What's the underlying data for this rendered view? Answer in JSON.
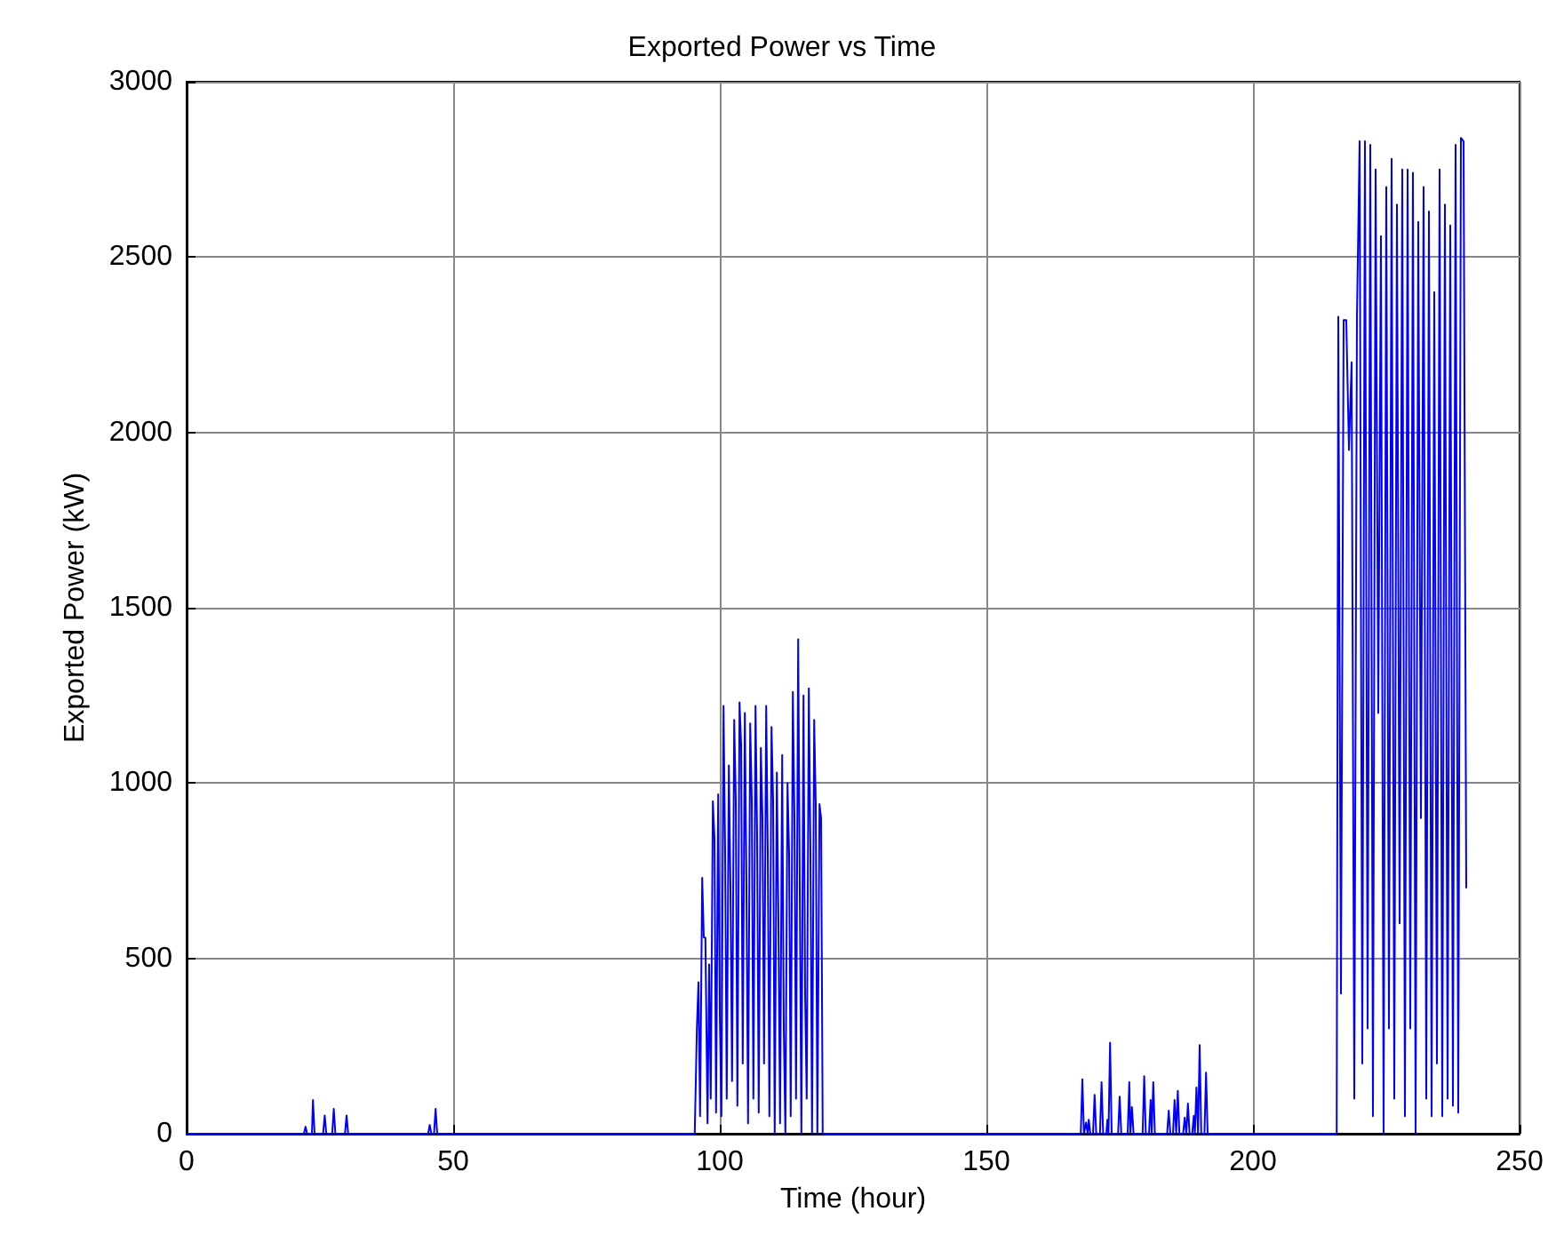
{
  "chart_data": {
    "type": "line",
    "title": "Exported Power vs Time",
    "xlabel": "Time (hour)",
    "ylabel": "Exported Power (kW)",
    "xlim": [
      0,
      250
    ],
    "xticks": [
      0,
      50,
      100,
      150,
      200,
      250
    ],
    "ylim": [
      0,
      3000
    ],
    "yticks": [
      0,
      500,
      1000,
      1500,
      2000,
      2500,
      3000
    ],
    "grid": true,
    "marker": "none",
    "line_style": "solid",
    "series": [
      {
        "color": "#0000ff",
        "x": [
          0,
          22,
          22.3,
          22.6,
          23.5,
          23.7,
          24,
          25.6,
          25.9,
          26.2,
          27.3,
          27.6,
          27.9,
          29.7,
          30,
          30.3,
          45.3,
          45.6,
          45.9,
          46.4,
          46.7,
          47,
          95,
          95.3,
          95.7,
          96,
          96.3,
          96.7,
          97,
          97.3,
          97.7,
          98,
          98.3,
          98.7,
          99,
          99.3,
          99.7,
          100,
          100.3,
          100.7,
          101,
          101.3,
          101.7,
          102,
          102.3,
          102.7,
          103,
          103.3,
          103.7,
          104,
          104.3,
          104.7,
          105,
          105.3,
          105.7,
          106,
          106.3,
          106.7,
          107,
          107.3,
          107.7,
          108,
          108.3,
          108.7,
          109,
          109.3,
          109.7,
          110,
          110.3,
          110.7,
          111,
          111.3,
          111.7,
          112,
          112.3,
          112.7,
          113,
          113.3,
          113.7,
          114,
          114.3,
          114.7,
          115,
          115.3,
          115.7,
          116,
          116.3,
          116.7,
          117,
          117.3,
          117.7,
          118,
          118.3,
          118.7,
          119,
          119.3,
          119.7,
          120,
          167.7,
          168,
          168.3,
          168.7,
          169,
          169.2,
          169.5,
          170,
          170.3,
          170.6,
          171.3,
          171.6,
          171.9,
          172.5,
          172.7,
          172.9,
          173.2,
          173.5,
          174.7,
          175,
          175.3,
          176.5,
          176.8,
          177,
          177.3,
          177.6,
          179.3,
          179.6,
          179.9,
          180.5,
          180.8,
          181,
          181.3,
          181.6,
          183.9,
          184.2,
          184.5,
          185,
          185.3,
          185.6,
          185.9,
          186.2,
          186.9,
          187.2,
          187.5,
          187.8,
          188.1,
          188.6,
          188.9,
          189.1,
          189.4,
          189.7,
          190,
          190.3,
          190.9,
          191.2,
          191.5,
          215.7,
          216,
          216.5,
          217,
          217.5,
          218,
          218.5,
          219,
          219.5,
          220,
          220.5,
          221,
          221.5,
          222,
          222.5,
          223,
          223.5,
          224,
          224.5,
          225,
          225.5,
          226,
          226.5,
          227,
          227.5,
          228,
          228.5,
          229,
          229.5,
          230,
          230.5,
          231,
          231.5,
          232,
          232.5,
          233,
          233.5,
          234,
          234.5,
          235,
          235.5,
          236,
          236.5,
          237,
          237.5,
          238,
          238.5,
          239,
          239.5,
          240
        ],
        "values": [
          0,
          0,
          20,
          0,
          0,
          96,
          0,
          0,
          52,
          0,
          0,
          71,
          0,
          0,
          52,
          0,
          0,
          25,
          0,
          0,
          71,
          0,
          0,
          0,
          300,
          432,
          50,
          730,
          560,
          559,
          30,
          483,
          100,
          948,
          843,
          60,
          968,
          345,
          50,
          1220,
          800,
          100,
          1050,
          700,
          150,
          1180,
          950,
          80,
          1230,
          1110,
          200,
          1200,
          700,
          30,
          1170,
          950,
          100,
          1220,
          850,
          60,
          1100,
          900,
          200,
          1220,
          800,
          50,
          1160,
          950,
          0,
          1030,
          600,
          30,
          1080,
          300,
          0,
          1000,
          800,
          50,
          1260,
          900,
          100,
          1410,
          700,
          0,
          1250,
          400,
          100,
          1270,
          800,
          0,
          1180,
          940,
          0,
          940,
          900,
          0,
          0,
          0,
          0,
          155,
          0,
          32,
          0,
          40,
          0,
          0,
          111,
          0,
          0,
          147,
          0,
          0,
          40,
          0,
          260,
          0,
          0,
          106,
          0,
          0,
          147,
          0,
          76,
          0,
          0,
          164,
          0,
          0,
          96,
          0,
          147,
          0,
          0,
          66,
          0,
          0,
          96,
          0,
          122,
          0,
          0,
          46,
          0,
          86,
          0,
          0,
          51,
          0,
          132,
          0,
          253,
          0,
          0,
          174,
          0,
          0,
          2330,
          400,
          2320,
          2320,
          1950,
          2200,
          100,
          2330,
          2830,
          200,
          2830,
          300,
          2820,
          50,
          2750,
          1200,
          2560,
          0,
          2700,
          300,
          2780,
          100,
          2650,
          600,
          2750,
          50,
          2750,
          300,
          2740,
          0,
          2600,
          900,
          2700,
          100,
          2630,
          50,
          2400,
          200,
          2750,
          50,
          2650,
          100,
          2590,
          80,
          2820,
          60,
          2840,
          2830,
          700
        ]
      }
    ]
  }
}
